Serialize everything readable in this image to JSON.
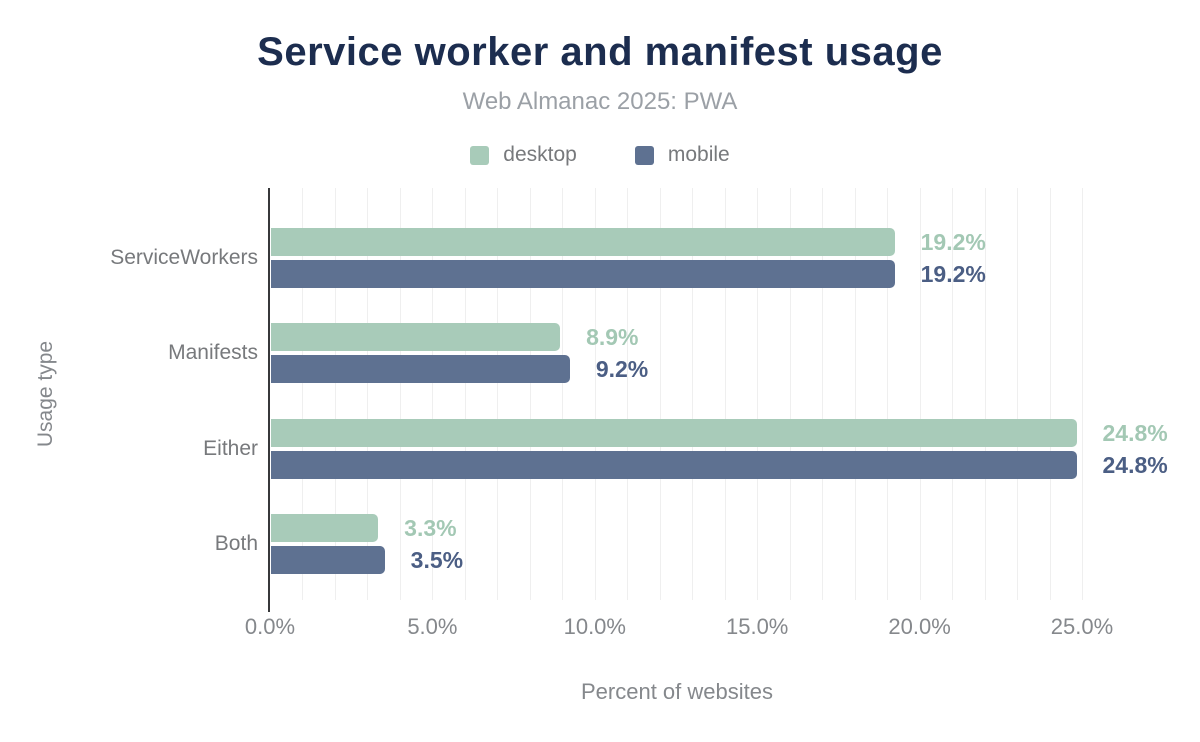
{
  "chart": {
    "title": "Service worker and manifest usage",
    "subtitle": "Web Almanac 2025: PWA"
  },
  "chart_data": {
    "type": "bar",
    "orientation": "horizontal",
    "title": "Service worker and manifest usage",
    "subtitle": "Web Almanac 2025: PWA",
    "categories": [
      "ServiceWorkers",
      "Manifests",
      "Either",
      "Both"
    ],
    "series": [
      {
        "name": "desktop",
        "color": "#a8cbb9",
        "label_color": "#a3c8b4",
        "values": [
          19.2,
          8.9,
          24.8,
          3.3
        ],
        "value_labels": [
          "19.2%",
          "8.9%",
          "24.8%",
          "3.3%"
        ]
      },
      {
        "name": "mobile",
        "color": "#5e7191",
        "label_color": "#4b5e84",
        "values": [
          19.2,
          9.2,
          24.8,
          3.5
        ],
        "value_labels": [
          "19.2%",
          "9.2%",
          "24.8%",
          "3.5%"
        ]
      }
    ],
    "xlabel": "Percent of websites",
    "ylabel": "Usage type",
    "xlim": [
      0,
      25
    ],
    "xticks": [
      {
        "value": 0,
        "label": "0.0%"
      },
      {
        "value": 5,
        "label": "5.0%"
      },
      {
        "value": 10,
        "label": "10.0%"
      },
      {
        "value": 15,
        "label": "15.0%"
      },
      {
        "value": 20,
        "label": "20.0%"
      },
      {
        "value": 25,
        "label": "25.0%"
      }
    ],
    "grid": "vertical, minor every 1%",
    "legend_position": "top-center",
    "colors": {
      "title": "#1c2d4f",
      "subtitle": "#9ba0a6",
      "text_gray": "#77797c",
      "tick_gray": "#85888c",
      "gridline": "#efefef",
      "axis_line": "#37383a",
      "background": "#ffffff"
    }
  }
}
